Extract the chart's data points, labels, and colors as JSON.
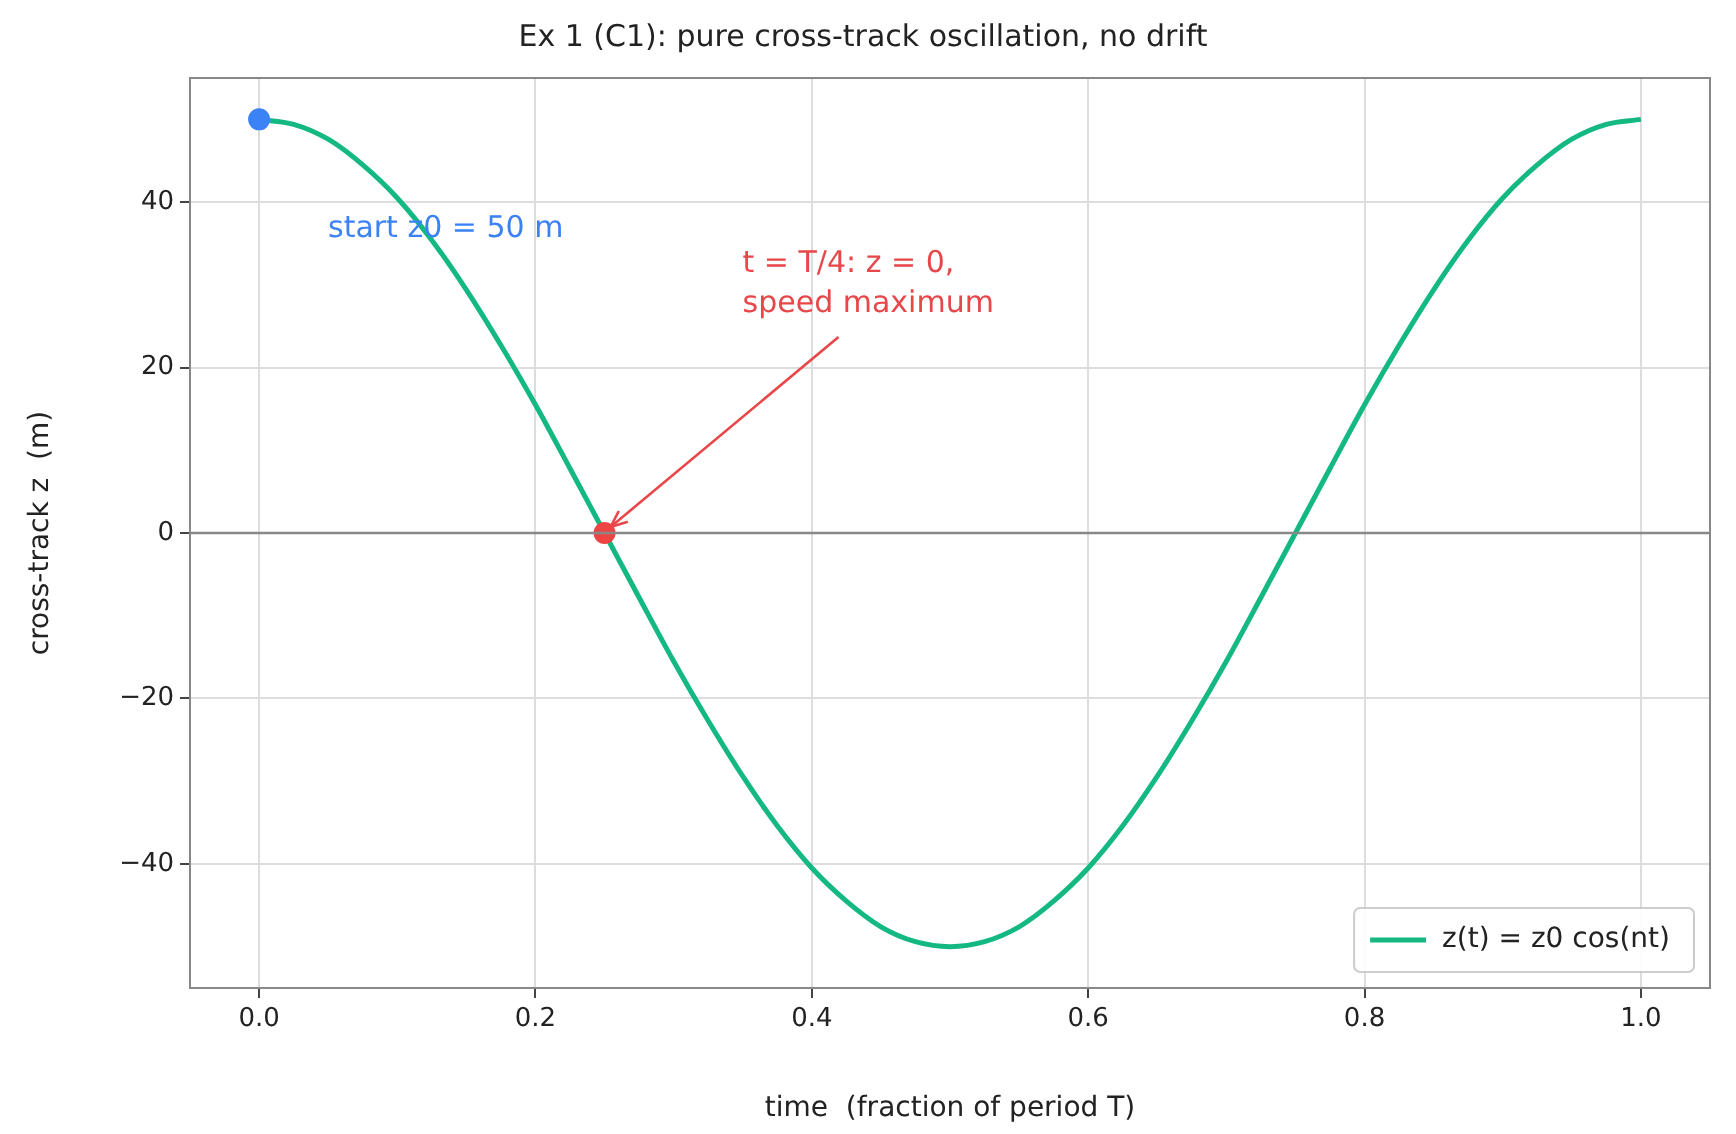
{
  "chart_data": {
    "type": "line",
    "title": "Ex 1 (C1): pure cross-track oscillation, no drift",
    "xlabel": "time  (fraction of period T)",
    "ylabel": "cross-track z  (m)",
    "x": [
      0,
      0.025,
      0.05,
      0.075,
      0.1,
      0.125,
      0.15,
      0.175,
      0.2,
      0.225,
      0.25,
      0.275,
      0.3,
      0.325,
      0.35,
      0.375,
      0.4,
      0.425,
      0.45,
      0.475,
      0.5,
      0.525,
      0.55,
      0.575,
      0.6,
      0.625,
      0.65,
      0.675,
      0.7,
      0.725,
      0.75,
      0.775,
      0.8,
      0.825,
      0.85,
      0.875,
      0.9,
      0.925,
      0.95,
      0.975,
      1
    ],
    "series": [
      {
        "name": "z(t) = z0 cos(nt)",
        "color": "#14b882",
        "values": [
          50,
          49.4,
          47.6,
          44.5,
          40.5,
          35.4,
          29.4,
          22.7,
          15.5,
          7.8,
          0,
          -7.8,
          -15.5,
          -22.7,
          -29.4,
          -35.4,
          -40.5,
          -44.5,
          -47.6,
          -49.4,
          -50,
          -49.4,
          -47.6,
          -44.5,
          -40.5,
          -35.4,
          -29.4,
          -22.7,
          -15.5,
          -7.8,
          0,
          7.8,
          15.5,
          22.7,
          29.4,
          35.4,
          40.5,
          44.5,
          47.6,
          49.4,
          50
        ]
      },
      {
        "type": "scatter",
        "color": "#3b82f6",
        "marker": "circle",
        "x": [
          0
        ],
        "values": [
          50
        ]
      },
      {
        "type": "scatter",
        "color": "#ef4444",
        "marker": "circle",
        "x": [
          0.25
        ],
        "values": [
          0
        ]
      }
    ],
    "annotations": [
      "start z0 = 50 m",
      {
        "text": "t = T/4: z = 0,\nspeed maximum",
        "x": 0.25,
        "y": 0
      }
    ],
    "ref_lines": [
      {
        "axis": "y",
        "value": 0,
        "color": "#888888"
      }
    ],
    "xlim": [
      -0.05,
      1.05
    ],
    "ylim": [
      -55,
      55
    ],
    "xticks": [
      {
        "value": 0,
        "label": "0.0"
      },
      {
        "value": 0.2,
        "label": "0.2"
      },
      {
        "value": 0.4,
        "label": "0.4"
      },
      {
        "value": 0.6,
        "label": "0.6"
      },
      {
        "value": 0.8,
        "label": "0.8"
      },
      {
        "value": 1,
        "label": "1.0"
      }
    ],
    "yticks": [
      {
        "value": -40,
        "label": "−40"
      },
      {
        "value": -20,
        "label": "−20"
      },
      0,
      20,
      40
    ],
    "grid": true,
    "legend": "bottom right",
    "marker": "none",
    "line_style": "solid"
  }
}
